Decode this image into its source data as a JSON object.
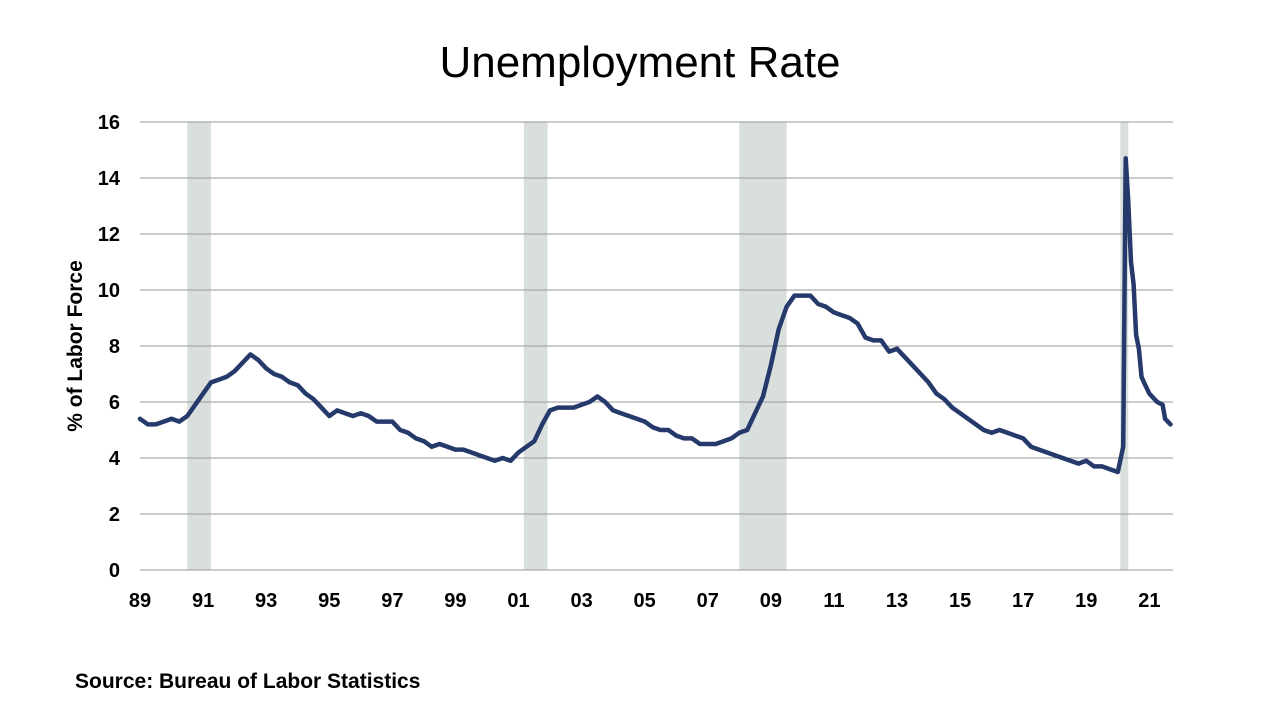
{
  "chart_data": {
    "type": "line",
    "title": "Unemployment Rate",
    "ylabel": "% of Labor Force",
    "xlabel": "",
    "ylim": [
      0,
      16
    ],
    "xlim": [
      1989.0,
      2021.75
    ],
    "y_ticks": [
      0,
      2,
      4,
      6,
      8,
      10,
      12,
      14,
      16
    ],
    "x_ticks": [
      {
        "value": 1989,
        "label": "89"
      },
      {
        "value": 1991,
        "label": "91"
      },
      {
        "value": 1993,
        "label": "93"
      },
      {
        "value": 1995,
        "label": "95"
      },
      {
        "value": 1997,
        "label": "97"
      },
      {
        "value": 1999,
        "label": "99"
      },
      {
        "value": 2001,
        "label": "01"
      },
      {
        "value": 2003,
        "label": "03"
      },
      {
        "value": 2005,
        "label": "05"
      },
      {
        "value": 2007,
        "label": "07"
      },
      {
        "value": 2009,
        "label": "09"
      },
      {
        "value": 2011,
        "label": "11"
      },
      {
        "value": 2013,
        "label": "13"
      },
      {
        "value": 2015,
        "label": "15"
      },
      {
        "value": 2017,
        "label": "17"
      },
      {
        "value": 2019,
        "label": "19"
      },
      {
        "value": 2021,
        "label": "21"
      }
    ],
    "grid": true,
    "recession_bands": [
      {
        "start": 1990.5,
        "end": 1991.25
      },
      {
        "start": 2001.17,
        "end": 2001.92
      },
      {
        "start": 2008.0,
        "end": 2009.5
      },
      {
        "start": 2020.08,
        "end": 2020.33
      }
    ],
    "line_color": "#253a6b",
    "band_color": "#d8dfdd",
    "series": [
      {
        "values": [
          [
            1989.0,
            5.4
          ],
          [
            1989.25,
            5.2
          ],
          [
            1989.5,
            5.2
          ],
          [
            1989.75,
            5.3
          ],
          [
            1990.0,
            5.4
          ],
          [
            1990.25,
            5.3
          ],
          [
            1990.5,
            5.5
          ],
          [
            1990.75,
            5.9
          ],
          [
            1991.0,
            6.3
          ],
          [
            1991.25,
            6.7
          ],
          [
            1991.5,
            6.8
          ],
          [
            1991.75,
            6.9
          ],
          [
            1992.0,
            7.1
          ],
          [
            1992.25,
            7.4
          ],
          [
            1992.5,
            7.7
          ],
          [
            1992.75,
            7.5
          ],
          [
            1993.0,
            7.2
          ],
          [
            1993.25,
            7.0
          ],
          [
            1993.5,
            6.9
          ],
          [
            1993.75,
            6.7
          ],
          [
            1994.0,
            6.6
          ],
          [
            1994.25,
            6.3
          ],
          [
            1994.5,
            6.1
          ],
          [
            1994.75,
            5.8
          ],
          [
            1995.0,
            5.5
          ],
          [
            1995.25,
            5.7
          ],
          [
            1995.5,
            5.6
          ],
          [
            1995.75,
            5.5
          ],
          [
            1996.0,
            5.6
          ],
          [
            1996.25,
            5.5
          ],
          [
            1996.5,
            5.3
          ],
          [
            1996.75,
            5.3
          ],
          [
            1997.0,
            5.3
          ],
          [
            1997.25,
            5.0
          ],
          [
            1997.5,
            4.9
          ],
          [
            1997.75,
            4.7
          ],
          [
            1998.0,
            4.6
          ],
          [
            1998.25,
            4.4
          ],
          [
            1998.5,
            4.5
          ],
          [
            1998.75,
            4.4
          ],
          [
            1999.0,
            4.3
          ],
          [
            1999.25,
            4.3
          ],
          [
            1999.5,
            4.2
          ],
          [
            1999.75,
            4.1
          ],
          [
            2000.0,
            4.0
          ],
          [
            2000.25,
            3.9
          ],
          [
            2000.5,
            4.0
          ],
          [
            2000.75,
            3.9
          ],
          [
            2001.0,
            4.2
          ],
          [
            2001.25,
            4.4
          ],
          [
            2001.5,
            4.6
          ],
          [
            2001.75,
            5.2
          ],
          [
            2002.0,
            5.7
          ],
          [
            2002.25,
            5.8
          ],
          [
            2002.5,
            5.8
          ],
          [
            2002.75,
            5.8
          ],
          [
            2003.0,
            5.9
          ],
          [
            2003.25,
            6.0
          ],
          [
            2003.5,
            6.2
          ],
          [
            2003.75,
            6.0
          ],
          [
            2004.0,
            5.7
          ],
          [
            2004.25,
            5.6
          ],
          [
            2004.5,
            5.5
          ],
          [
            2004.75,
            5.4
          ],
          [
            2005.0,
            5.3
          ],
          [
            2005.25,
            5.1
          ],
          [
            2005.5,
            5.0
          ],
          [
            2005.75,
            5.0
          ],
          [
            2006.0,
            4.8
          ],
          [
            2006.25,
            4.7
          ],
          [
            2006.5,
            4.7
          ],
          [
            2006.75,
            4.5
          ],
          [
            2007.0,
            4.5
          ],
          [
            2007.25,
            4.5
          ],
          [
            2007.5,
            4.6
          ],
          [
            2007.75,
            4.7
          ],
          [
            2008.0,
            4.9
          ],
          [
            2008.25,
            5.0
          ],
          [
            2008.5,
            5.6
          ],
          [
            2008.75,
            6.2
          ],
          [
            2009.0,
            7.3
          ],
          [
            2009.25,
            8.6
          ],
          [
            2009.5,
            9.4
          ],
          [
            2009.75,
            9.8
          ],
          [
            2010.0,
            9.8
          ],
          [
            2010.25,
            9.8
          ],
          [
            2010.5,
            9.5
          ],
          [
            2010.75,
            9.4
          ],
          [
            2011.0,
            9.2
          ],
          [
            2011.25,
            9.1
          ],
          [
            2011.5,
            9.0
          ],
          [
            2011.75,
            8.8
          ],
          [
            2012.0,
            8.3
          ],
          [
            2012.25,
            8.2
          ],
          [
            2012.5,
            8.2
          ],
          [
            2012.75,
            7.8
          ],
          [
            2013.0,
            7.9
          ],
          [
            2013.25,
            7.6
          ],
          [
            2013.5,
            7.3
          ],
          [
            2013.75,
            7.0
          ],
          [
            2014.0,
            6.7
          ],
          [
            2014.25,
            6.3
          ],
          [
            2014.5,
            6.1
          ],
          [
            2014.75,
            5.8
          ],
          [
            2015.0,
            5.6
          ],
          [
            2015.25,
            5.4
          ],
          [
            2015.5,
            5.2
          ],
          [
            2015.75,
            5.0
          ],
          [
            2016.0,
            4.9
          ],
          [
            2016.25,
            5.0
          ],
          [
            2016.5,
            4.9
          ],
          [
            2016.75,
            4.8
          ],
          [
            2017.0,
            4.7
          ],
          [
            2017.25,
            4.4
          ],
          [
            2017.5,
            4.3
          ],
          [
            2017.75,
            4.2
          ],
          [
            2018.0,
            4.1
          ],
          [
            2018.25,
            4.0
          ],
          [
            2018.5,
            3.9
          ],
          [
            2018.75,
            3.8
          ],
          [
            2019.0,
            3.9
          ],
          [
            2019.25,
            3.7
          ],
          [
            2019.5,
            3.7
          ],
          [
            2019.75,
            3.6
          ],
          [
            2020.0,
            3.5
          ],
          [
            2020.17,
            4.4
          ],
          [
            2020.25,
            14.7
          ],
          [
            2020.33,
            13.2
          ],
          [
            2020.42,
            11.0
          ],
          [
            2020.5,
            10.2
          ],
          [
            2020.58,
            8.4
          ],
          [
            2020.67,
            7.9
          ],
          [
            2020.75,
            6.9
          ],
          [
            2020.83,
            6.7
          ],
          [
            2021.0,
            6.3
          ],
          [
            2021.25,
            6.0
          ],
          [
            2021.42,
            5.9
          ],
          [
            2021.5,
            5.4
          ],
          [
            2021.67,
            5.2
          ]
        ]
      }
    ]
  },
  "footer": {
    "source": "Source: Bureau of Labor Statistics"
  }
}
